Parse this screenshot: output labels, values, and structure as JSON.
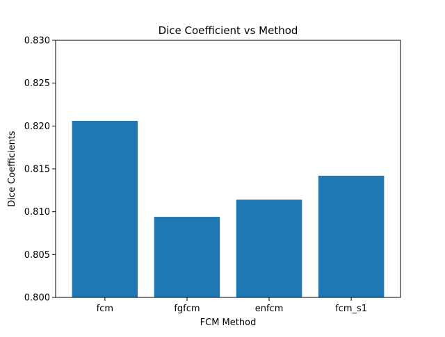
{
  "chart_data": {
    "type": "bar",
    "title": "Dice Coefficient vs Method",
    "xlabel": "FCM Method",
    "ylabel": "Dice Coefficients",
    "categories": [
      "fcm",
      "fgfcm",
      "enfcm",
      "fcm_s1"
    ],
    "values": [
      0.8206,
      0.8094,
      0.8114,
      0.8142
    ],
    "ylim": [
      0.8,
      0.83
    ],
    "yticks": [
      "0.800",
      "0.805",
      "0.810",
      "0.815",
      "0.820",
      "0.825",
      "0.830"
    ],
    "grid": false,
    "bar_color": "#1f77b4"
  }
}
